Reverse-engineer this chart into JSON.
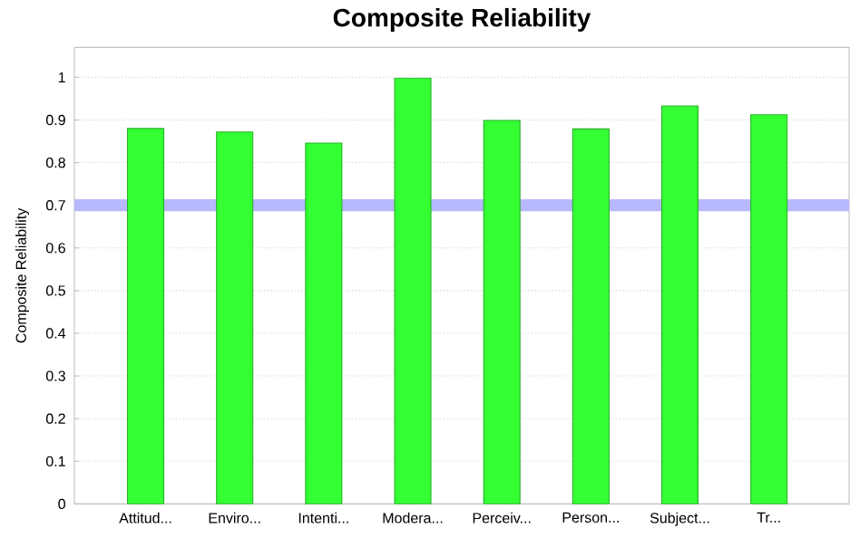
{
  "chart_data": {
    "type": "bar",
    "title": "Composite Reliability",
    "ylabel": "Composite Reliability",
    "categories": [
      "Attitud...",
      "Enviro...",
      "Intenti...",
      "Modera...",
      "Perceiv...",
      "Person...",
      "Subject...",
      "Tr..."
    ],
    "values": [
      0.88,
      0.872,
      0.846,
      0.998,
      0.899,
      0.879,
      0.933,
      0.912
    ],
    "color": "#33ff33",
    "ylim": [
      0,
      1.07
    ],
    "yticks": [
      0,
      0.1,
      0.2,
      0.3,
      0.4,
      0.5,
      0.6,
      0.7,
      0.8,
      0.9,
      1
    ],
    "grid": "y",
    "ref_lines": [
      {
        "axis": "y",
        "value": 0.7,
        "color": "#b8b8ff"
      }
    ]
  }
}
